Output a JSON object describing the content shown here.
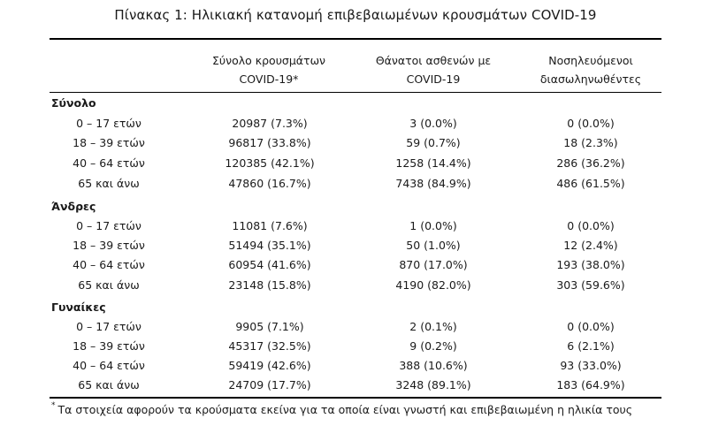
{
  "title": "Πίνακας 1: Ηλικιακή κατανομή επιβεβαιωμένων κρουσμάτων COVID-19",
  "headers": {
    "col1_line1": "Σύνολο κρουσμάτων",
    "col1_line2": "COVID-19*",
    "col2_line1": "Θάνατοι ασθενών με",
    "col2_line2": "COVID-19",
    "col3_line1": "Νοσηλευόμενοι",
    "col3_line2": "διασωληνωθέντες"
  },
  "groups": [
    {
      "label": "Σύνολο",
      "rows": [
        {
          "age": "0 – 17 ετών",
          "cases": "20987 (7.3%)",
          "deaths": "3 (0.0%)",
          "intubated": "0 (0.0%)"
        },
        {
          "age": "18 – 39 ετών",
          "cases": "96817 (33.8%)",
          "deaths": "59 (0.7%)",
          "intubated": "18 (2.3%)"
        },
        {
          "age": "40 – 64 ετών",
          "cases": "120385 (42.1%)",
          "deaths": "1258 (14.4%)",
          "intubated": "286 (36.2%)"
        },
        {
          "age": "65 και άνω",
          "cases": "47860 (16.7%)",
          "deaths": "7438 (84.9%)",
          "intubated": "486 (61.5%)"
        }
      ]
    },
    {
      "label": "Άνδρες",
      "rows": [
        {
          "age": "0 – 17 ετών",
          "cases": "11081 (7.6%)",
          "deaths": "1 (0.0%)",
          "intubated": "0 (0.0%)"
        },
        {
          "age": "18 – 39 ετών",
          "cases": "51494 (35.1%)",
          "deaths": "50 (1.0%)",
          "intubated": "12 (2.4%)"
        },
        {
          "age": "40 – 64 ετών",
          "cases": "60954 (41.6%)",
          "deaths": "870 (17.0%)",
          "intubated": "193 (38.0%)"
        },
        {
          "age": "65 και άνω",
          "cases": "23148 (15.8%)",
          "deaths": "4190 (82.0%)",
          "intubated": "303 (59.6%)"
        }
      ]
    },
    {
      "label": "Γυναίκες",
      "rows": [
        {
          "age": "0 – 17 ετών",
          "cases": "9905 (7.1%)",
          "deaths": "2 (0.1%)",
          "intubated": "0 (0.0%)"
        },
        {
          "age": "18 – 39 ετών",
          "cases": "45317 (32.5%)",
          "deaths": "9 (0.2%)",
          "intubated": "6 (2.1%)"
        },
        {
          "age": "40 – 64 ετών",
          "cases": "59419 (42.6%)",
          "deaths": "388 (10.6%)",
          "intubated": "93 (33.0%)"
        },
        {
          "age": "65 και άνω",
          "cases": "24709 (17.7%)",
          "deaths": "3248 (89.1%)",
          "intubated": "183 (64.9%)"
        }
      ]
    }
  ],
  "footnote_mark": "*",
  "footnote": "Τα στοιχεία αφορούν τα κρούσματα εκείνα για τα οποία είναι γνωστή και επιβεβαιωμένη η ηλικία τους"
}
